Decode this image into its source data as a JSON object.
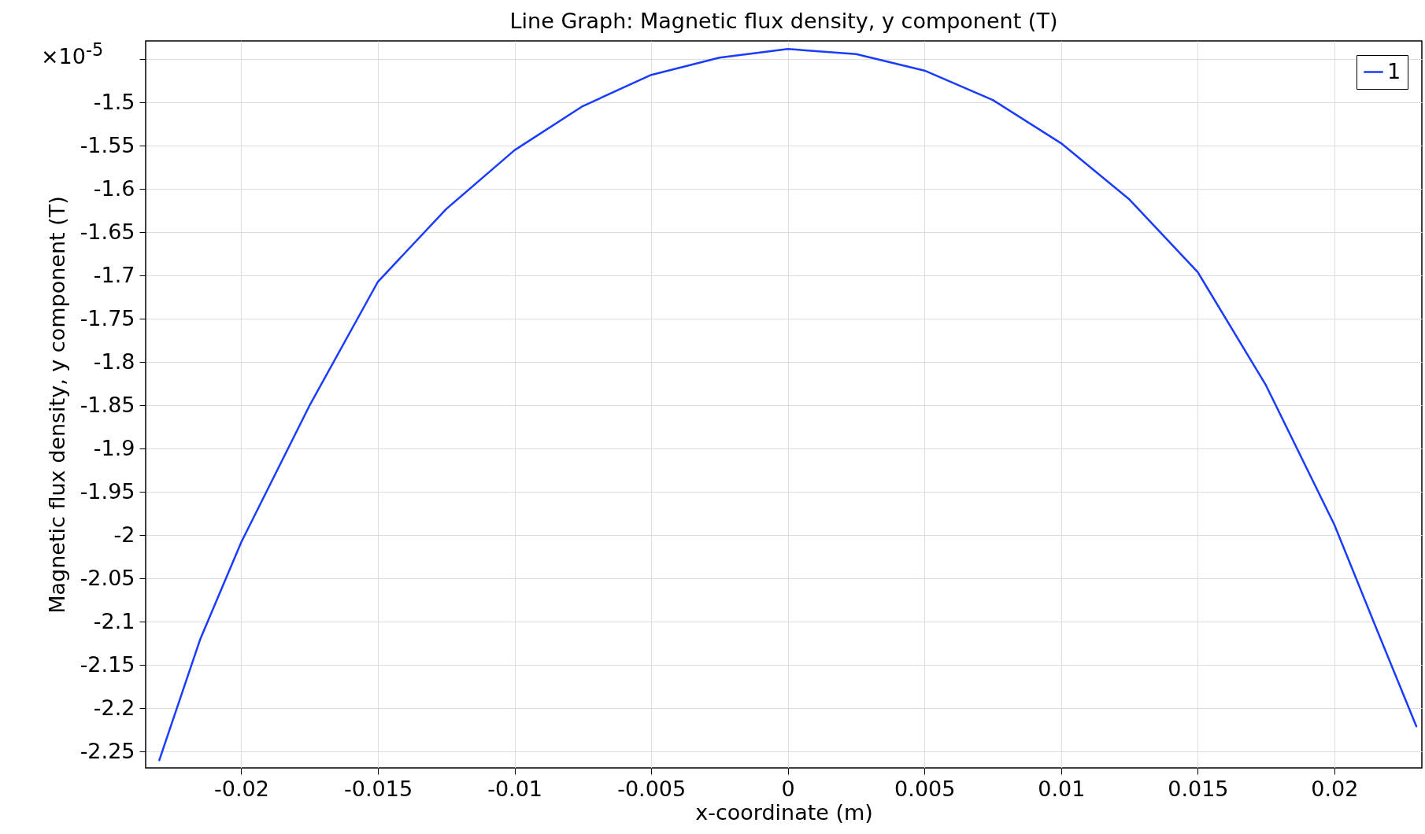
{
  "chart_data": {
    "type": "line",
    "title": "Line Graph: Magnetic flux density, y component (T)",
    "xlabel": "x-coordinate (m)",
    "ylabel": "Magnetic flux density, y component (T)",
    "annotations": [
      "×10$^{-5}$"
    ],
    "x": [
      -0.023,
      -0.0215,
      -0.02,
      -0.0175,
      -0.015,
      -0.0125,
      -0.01,
      -0.0075,
      -0.005,
      -0.0025,
      0,
      0.0025,
      0.005,
      0.0075,
      0.01,
      0.0125,
      0.015,
      0.0175,
      0.02,
      0.0215,
      0.023
    ],
    "series": [
      {
        "name": "1",
        "color": "#1a3cff",
        "values": [
          -2.26,
          -2.12,
          -2.008,
          -1.85,
          -1.707,
          -1.623,
          -1.555,
          -1.504,
          -1.468,
          -1.448,
          -1.438,
          -1.444,
          -1.463,
          -1.497,
          -1.547,
          -1.612,
          -1.696,
          -1.827,
          -1.988,
          -2.105,
          -2.221
        ]
      }
    ],
    "xlim": [
      -0.0235,
      0.0232
    ],
    "ylim": [
      -2.269,
      -1.4287
    ],
    "xticks": [
      -0.02,
      -0.015,
      -0.01,
      -0.005,
      0,
      0.005,
      0.01,
      0.015,
      0.02
    ],
    "yticks": [
      -2.25,
      -2.2,
      -2.15,
      -2.1,
      -2.05,
      -2,
      -1.95,
      -1.9,
      -1.85,
      -1.8,
      -1.75,
      -1.7,
      -1.65,
      -1.6,
      -1.55,
      -1.5,
      {
        "value": -1.45,
        "label": null
      }
    ],
    "grid": true,
    "legend": "top right",
    "line_style": "solid",
    "marker": "none"
  }
}
